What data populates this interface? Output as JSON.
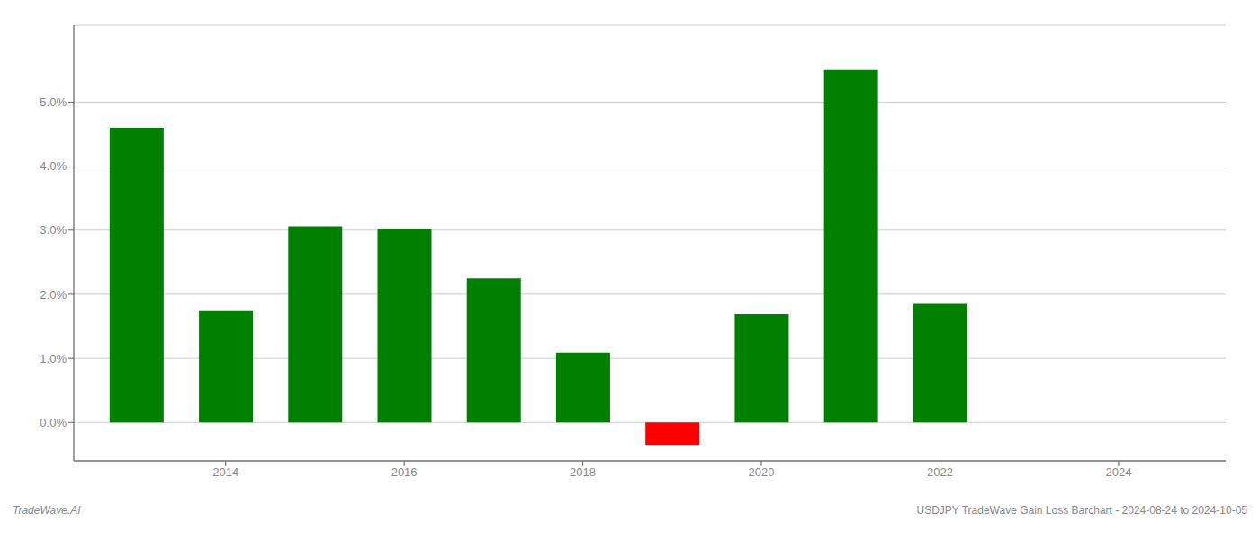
{
  "chart_data": {
    "type": "bar",
    "x": [
      2013,
      2014,
      2015,
      2016,
      2017,
      2018,
      2019,
      2020,
      2021,
      2022
    ],
    "values": [
      0.046,
      0.0175,
      0.0306,
      0.0302,
      0.0225,
      0.0109,
      -0.0035,
      0.0169,
      0.055,
      0.0185
    ],
    "colors": [
      "#008000",
      "#008000",
      "#008000",
      "#008000",
      "#008000",
      "#008000",
      "#ff0000",
      "#008000",
      "#008000",
      "#008000"
    ],
    "xlim": [
      2012.3,
      2025.2
    ],
    "xticks": [
      2014,
      2016,
      2018,
      2020,
      2022,
      2024
    ],
    "ylim": [
      -0.006,
      0.062
    ],
    "yticks": [
      {
        "value": 0.0,
        "label": "0.0%"
      },
      {
        "value": 0.01,
        "label": "1.0%"
      },
      {
        "value": 0.02,
        "label": "2.0%"
      },
      {
        "value": 0.03,
        "label": "3.0%"
      },
      {
        "value": 0.04,
        "label": "4.0%"
      },
      {
        "value": 0.05,
        "label": "5.0%"
      }
    ],
    "grid": true,
    "annotations": [
      "TradeWave.AI",
      "USDJPY TradeWave Gain Loss Barchart - 2024-08-24 to 2024-10-05"
    ]
  }
}
